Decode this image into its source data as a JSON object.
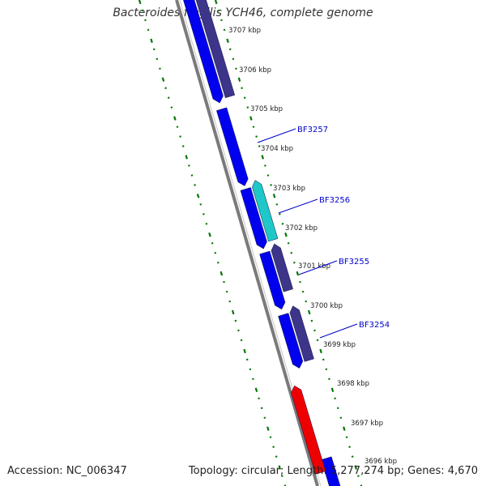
{
  "title": "Bacteroides fragilis YCH46, complete genome",
  "footer": {
    "accession": "Accession: NC_006347",
    "summary": "Topology: circular; Length: 5,277,274 bp; Genes: 4,670"
  },
  "colors": {
    "background": "#ffffff",
    "backbone": "#7a7a7a",
    "forward_gene": "#0000ee",
    "reverse_gene": "#3d3589",
    "highlight_gene": "#1ec8c8",
    "rna_gene": "#ee0000",
    "tick_marks": "#007700",
    "gene_labels": "#0000cc",
    "label_lines": "#0000cc",
    "kbp_labels": "#222222"
  },
  "scale_labels": [
    {
      "kbp": 3707,
      "text": "3707 kbp"
    },
    {
      "kbp": 3706,
      "text": "3706 kbp"
    },
    {
      "kbp": 3705,
      "text": "3705 kbp"
    },
    {
      "kbp": 3704,
      "text": "3704 kbp"
    },
    {
      "kbp": 3703,
      "text": "3703 kbp"
    },
    {
      "kbp": 3702,
      "text": "3702 kbp"
    },
    {
      "kbp": 3701,
      "text": "3701 kbp"
    },
    {
      "kbp": 3700,
      "text": "3700 kbp"
    },
    {
      "kbp": 3699,
      "text": "3699 kbp"
    },
    {
      "kbp": 3698,
      "text": "3698 kbp"
    },
    {
      "kbp": 3697,
      "text": "3697 kbp"
    },
    {
      "kbp": 3696,
      "text": "3696 kbp"
    }
  ],
  "gene_labels": [
    {
      "name": "BF3257"
    },
    {
      "name": "BF3256"
    },
    {
      "name": "BF3255"
    },
    {
      "name": "BF3254"
    }
  ]
}
